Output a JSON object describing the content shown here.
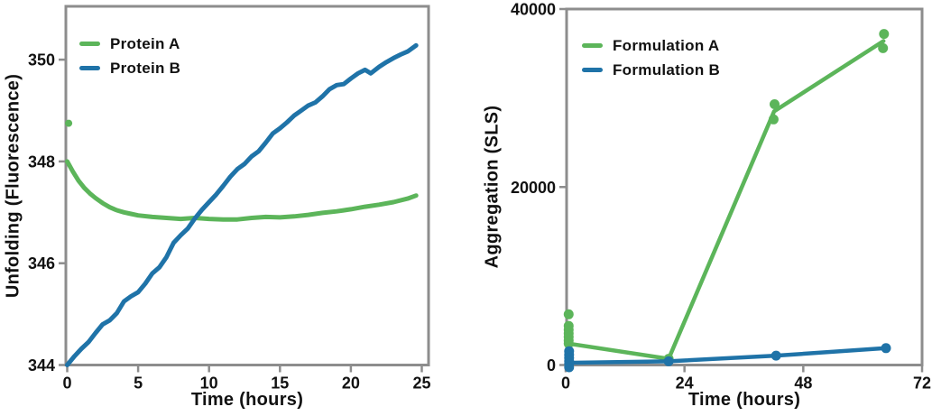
{
  "figure": {
    "background": "#ffffff",
    "axis_color": "#8d8d8d",
    "text_color": "#111111"
  },
  "chart_data": [
    {
      "id": "unfolding",
      "type": "line",
      "title": "",
      "xlabel": "Time (hours)",
      "ylabel": "Unfolding (Fluorescence)",
      "xlim": [
        0,
        25.3
      ],
      "ylim": [
        344,
        351.1
      ],
      "xticks": [
        0,
        5,
        10,
        15,
        20,
        25
      ],
      "yticks": [
        344,
        346,
        348,
        350
      ],
      "grid": false,
      "legend_position": "upper-left",
      "series": [
        {
          "name": "Protein A",
          "color": "#5cb55a",
          "linewidth": 5,
          "marker_size": 4,
          "line": [
            [
              0,
              348.0
            ],
            [
              0.4,
              347.8
            ],
            [
              0.8,
              347.62
            ],
            [
              1.2,
              347.48
            ],
            [
              1.6,
              347.37
            ],
            [
              2,
              347.28
            ],
            [
              2.5,
              347.18
            ],
            [
              3,
              347.1
            ],
            [
              3.5,
              347.04
            ],
            [
              4,
              347.0
            ],
            [
              4.5,
              346.97
            ],
            [
              5,
              346.94
            ],
            [
              6,
              346.91
            ],
            [
              7,
              346.89
            ],
            [
              8,
              346.87
            ],
            [
              9,
              346.89
            ],
            [
              10,
              346.87
            ],
            [
              11,
              346.86
            ],
            [
              12,
              346.86
            ],
            [
              13,
              346.89
            ],
            [
              14,
              346.91
            ],
            [
              15,
              346.9
            ],
            [
              16,
              346.92
            ],
            [
              17,
              346.95
            ],
            [
              18,
              346.99
            ],
            [
              19,
              347.02
            ],
            [
              20,
              347.06
            ],
            [
              21,
              347.11
            ],
            [
              22,
              347.15
            ],
            [
              23,
              347.2
            ],
            [
              24,
              347.27
            ],
            [
              24.6,
              347.33
            ]
          ],
          "markers": [
            [
              0.1,
              348.75
            ]
          ]
        },
        {
          "name": "Protein B",
          "color": "#1f73a8",
          "linewidth": 5,
          "marker_size": 0,
          "line": [
            [
              0,
              344.0
            ],
            [
              0.5,
              344.17
            ],
            [
              1,
              344.32
            ],
            [
              1.5,
              344.45
            ],
            [
              2,
              344.63
            ],
            [
              2.5,
              344.8
            ],
            [
              3,
              344.88
            ],
            [
              3.5,
              345.02
            ],
            [
              4,
              345.25
            ],
            [
              4.5,
              345.35
            ],
            [
              5,
              345.43
            ],
            [
              5.5,
              345.6
            ],
            [
              6,
              345.8
            ],
            [
              6.5,
              345.92
            ],
            [
              7,
              346.12
            ],
            [
              7.5,
              346.4
            ],
            [
              8,
              346.55
            ],
            [
              8.5,
              346.68
            ],
            [
              9,
              346.88
            ],
            [
              9.5,
              347.05
            ],
            [
              10,
              347.2
            ],
            [
              10.5,
              347.35
            ],
            [
              11,
              347.52
            ],
            [
              11.5,
              347.7
            ],
            [
              12,
              347.85
            ],
            [
              12.5,
              347.95
            ],
            [
              13,
              348.1
            ],
            [
              13.5,
              348.2
            ],
            [
              14,
              348.37
            ],
            [
              14.5,
              348.55
            ],
            [
              15,
              348.65
            ],
            [
              15.5,
              348.77
            ],
            [
              16,
              348.9
            ],
            [
              16.5,
              349.0
            ],
            [
              17,
              349.1
            ],
            [
              17.5,
              349.16
            ],
            [
              18,
              349.28
            ],
            [
              18.5,
              349.42
            ],
            [
              19,
              349.5
            ],
            [
              19.5,
              349.52
            ],
            [
              20,
              349.63
            ],
            [
              20.5,
              349.73
            ],
            [
              21,
              349.8
            ],
            [
              21.4,
              349.73
            ],
            [
              22,
              349.86
            ],
            [
              22.5,
              349.95
            ],
            [
              23,
              350.03
            ],
            [
              23.5,
              350.1
            ],
            [
              24,
              350.16
            ],
            [
              24.6,
              350.28
            ]
          ],
          "markers": []
        }
      ]
    },
    {
      "id": "aggregation",
      "type": "line",
      "title": "",
      "xlabel": "Time (hours)",
      "ylabel": "Aggregation (SLS)",
      "xlim": [
        0,
        72
      ],
      "ylim": [
        0,
        40000
      ],
      "xticks": [
        0,
        24,
        48,
        72
      ],
      "yticks": [
        0,
        20000,
        40000
      ],
      "grid": false,
      "legend_position": "upper-left",
      "series": [
        {
          "name": "Formulation A",
          "color": "#5cb55a",
          "linewidth": 4.5,
          "marker_size": 5.5,
          "line": [
            [
              0.6,
              2400
            ],
            [
              20.8,
              700
            ],
            [
              42.1,
              28500
            ],
            [
              64.2,
              36400
            ]
          ],
          "markers": [
            [
              0.6,
              5700
            ],
            [
              0.6,
              4400
            ],
            [
              0.6,
              3950
            ],
            [
              0.6,
              3550
            ],
            [
              0.6,
              3150
            ],
            [
              0.6,
              2750
            ],
            [
              0.6,
              2400
            ],
            [
              20.8,
              700
            ],
            [
              42,
              27600
            ],
            [
              42.2,
              29300
            ],
            [
              64.1,
              35600
            ],
            [
              64.3,
              37200
            ]
          ]
        },
        {
          "name": "Formulation B",
          "color": "#1f73a8",
          "linewidth": 4.5,
          "marker_size": 5.5,
          "line": [
            [
              0.7,
              250
            ],
            [
              20.8,
              420
            ],
            [
              42.5,
              1050
            ],
            [
              64.7,
              1900
            ]
          ],
          "markers": [
            [
              0.7,
              1550
            ],
            [
              0.7,
              1150
            ],
            [
              0.7,
              800
            ],
            [
              0.7,
              450
            ],
            [
              0.7,
              150
            ],
            [
              0.7,
              -250
            ],
            [
              20.8,
              420
            ],
            [
              42.5,
              1050
            ],
            [
              64.7,
              1900
            ]
          ]
        }
      ]
    }
  ]
}
